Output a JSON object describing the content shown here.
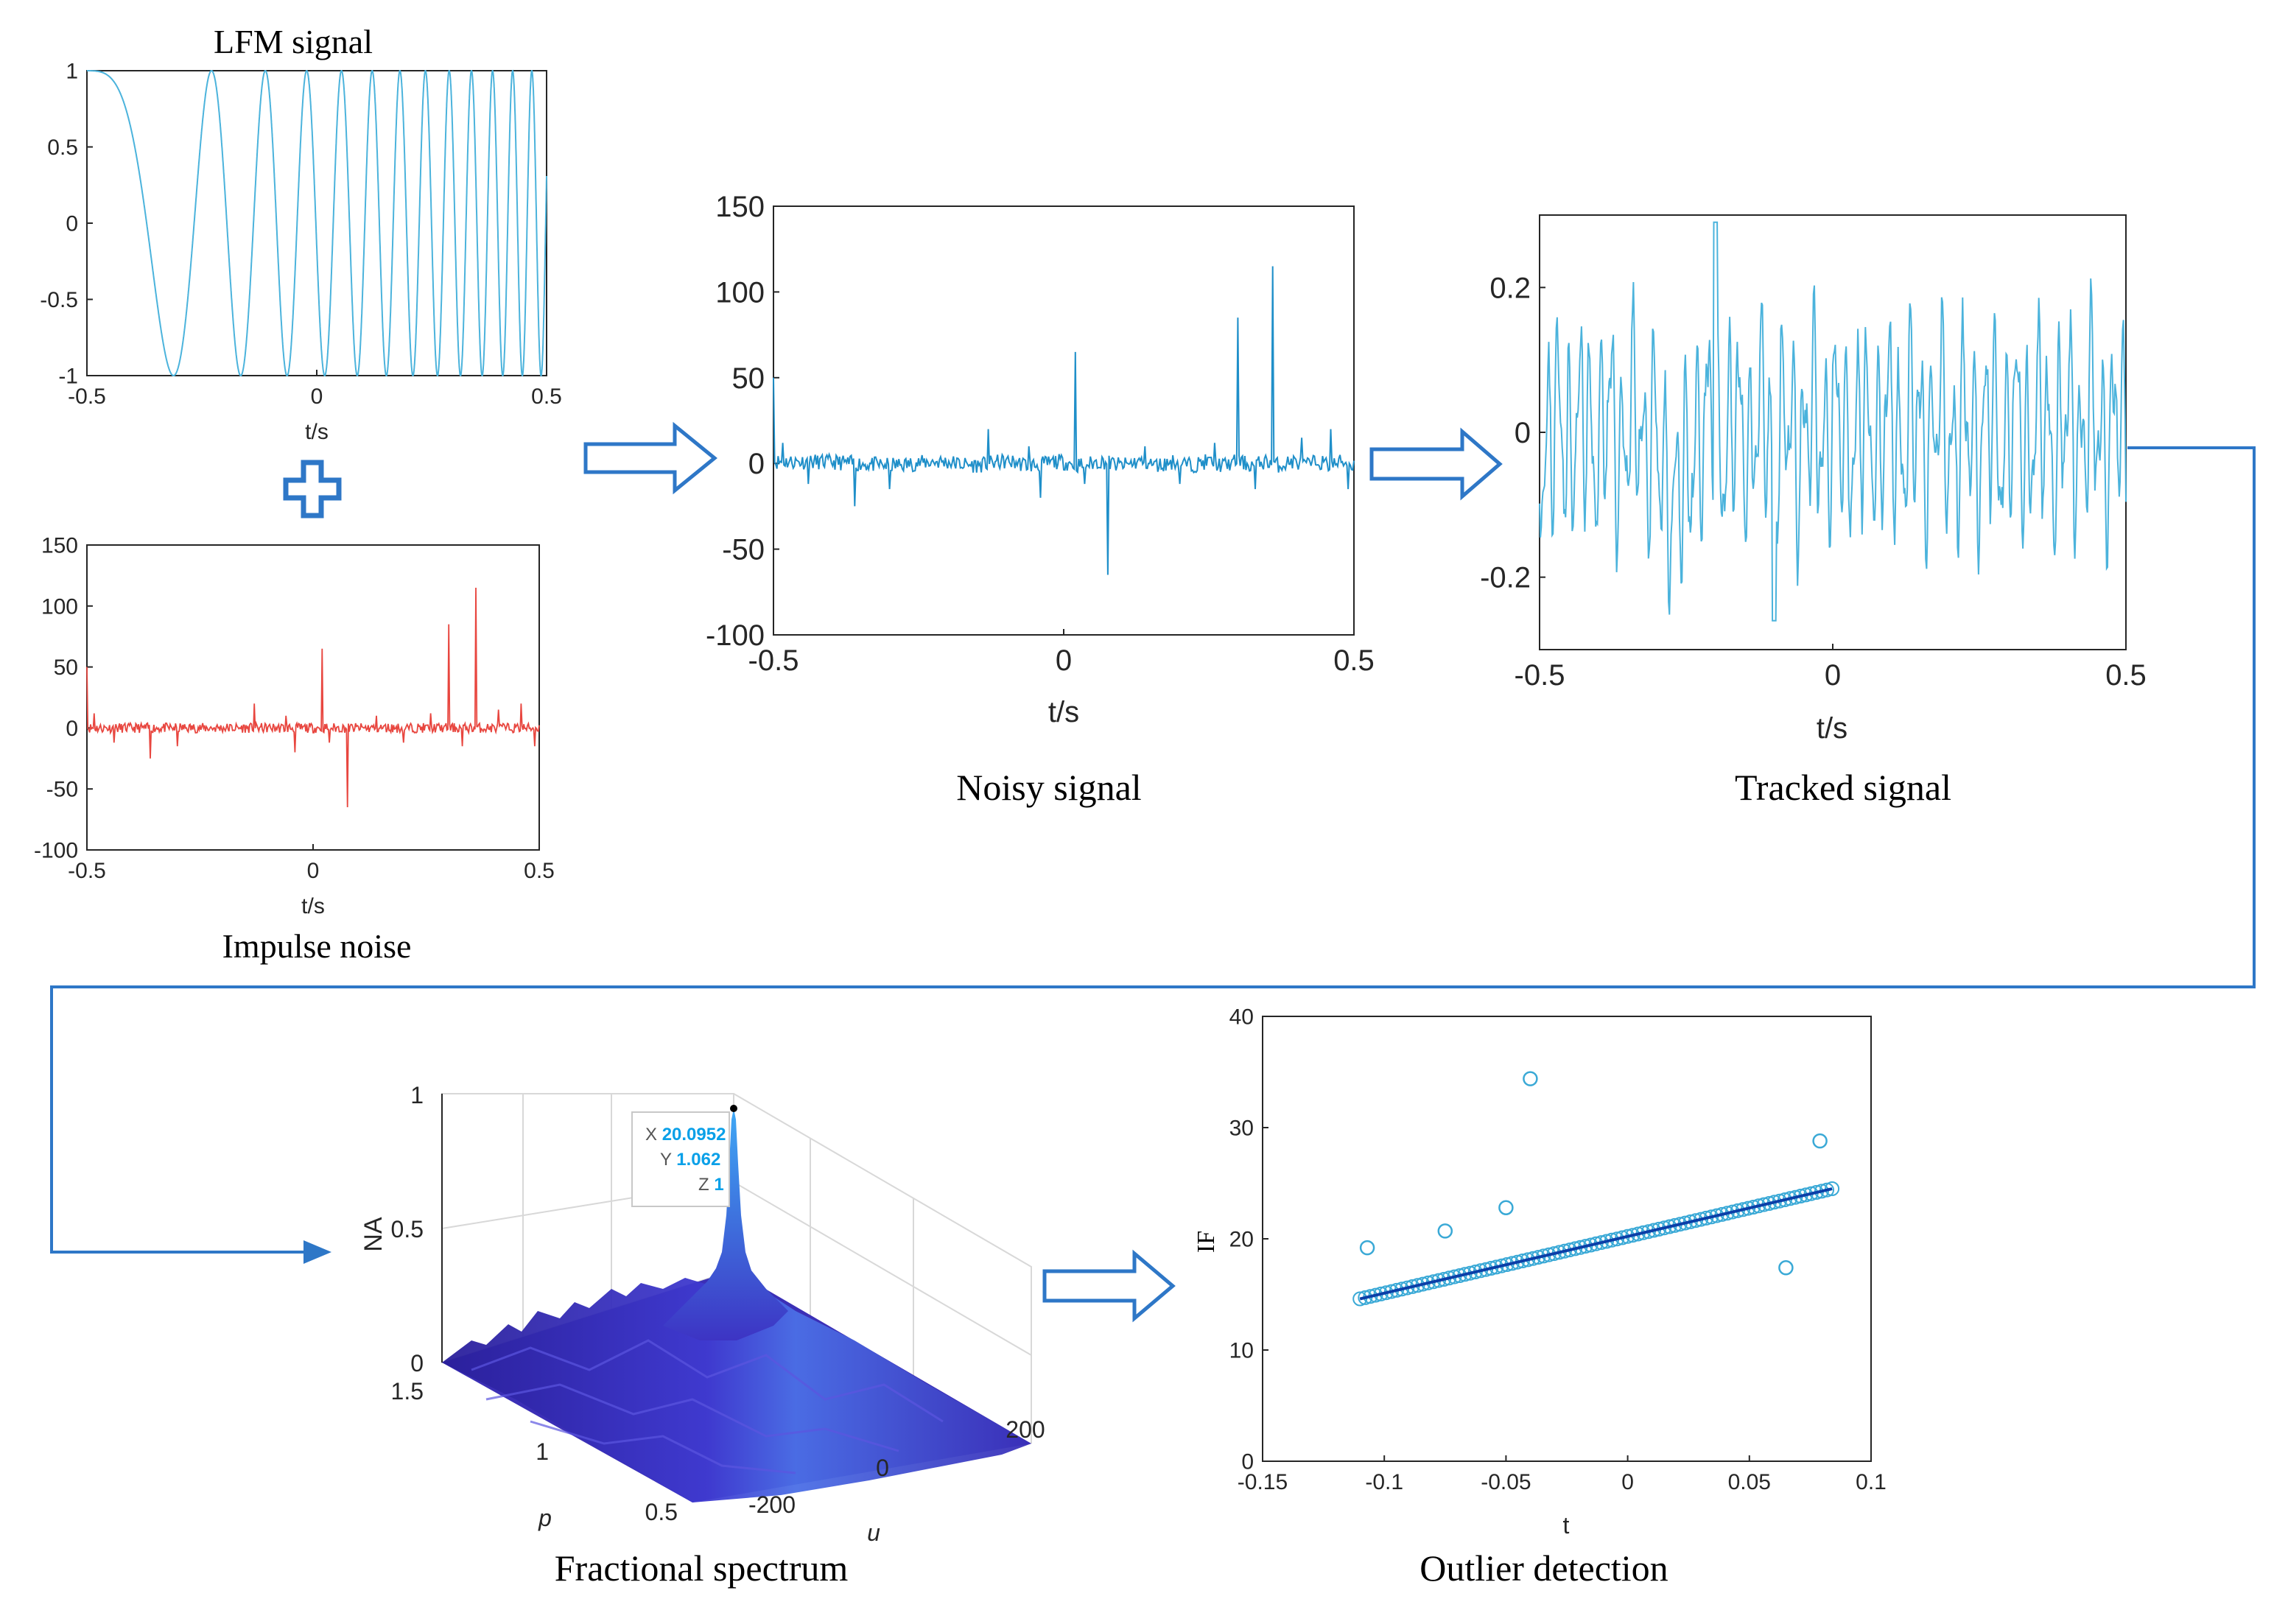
{
  "colors": {
    "signal": "#4bb3dc",
    "noisy": "#1f8fc9",
    "impulse": "#e8463f",
    "flow": "#2e77c7",
    "surface_dark": "#3c2bb0",
    "surface_light": "#4a8cf0",
    "outlier_marker": "#3aa9d6",
    "fit_line": "#0b3fa8"
  },
  "captions": {
    "lfm": "LFM signal",
    "impulse": "Impulse noise",
    "noisy": "Noisy signal",
    "tracked": "Tracked signal",
    "fractional": "Fractional spectrum",
    "outlier": "Outlier detection"
  },
  "plus_icon": "plus-icon",
  "chart_data": [
    {
      "id": "lfm",
      "type": "line",
      "title": "LFM signal",
      "xlabel": "t/s",
      "ylabel": "",
      "xlim": [
        -0.5,
        0.5
      ],
      "ylim": [
        -1,
        1
      ],
      "xticks": [
        "-0.5",
        "0",
        "0.5"
      ],
      "yticks": [
        "-1",
        "-0.5",
        "0",
        "0.5",
        "1"
      ],
      "signal": "cos(2*pi*(1600*t^2 + 1000*t))",
      "grid": false
    },
    {
      "id": "impulse",
      "type": "line",
      "title": "Impulse noise",
      "xlabel": "t/s",
      "ylabel": "",
      "xlim": [
        -0.5,
        0.5
      ],
      "ylim": [
        -100,
        150
      ],
      "xticks": [
        "-0.5",
        "0",
        "0.5"
      ],
      "yticks": [
        "-100",
        "-50",
        "0",
        "50",
        "100",
        "150"
      ],
      "spikes": [
        {
          "x": -0.5,
          "y": 50
        },
        {
          "x": -0.485,
          "y": 12
        },
        {
          "x": -0.44,
          "y": -12
        },
        {
          "x": -0.36,
          "y": -25
        },
        {
          "x": -0.3,
          "y": -15
        },
        {
          "x": -0.13,
          "y": 20
        },
        {
          "x": -0.06,
          "y": 10
        },
        {
          "x": -0.04,
          "y": -20
        },
        {
          "x": 0.02,
          "y": 65
        },
        {
          "x": 0.035,
          "y": -12
        },
        {
          "x": 0.075,
          "y": -65
        },
        {
          "x": 0.14,
          "y": 10
        },
        {
          "x": 0.2,
          "y": -12
        },
        {
          "x": 0.26,
          "y": 12
        },
        {
          "x": 0.3,
          "y": 85
        },
        {
          "x": 0.33,
          "y": -15
        },
        {
          "x": 0.36,
          "y": 115
        },
        {
          "x": 0.41,
          "y": 15
        },
        {
          "x": 0.46,
          "y": 20
        },
        {
          "x": 0.49,
          "y": -15
        }
      ],
      "grid": false
    },
    {
      "id": "noisy",
      "type": "line",
      "title": "Noisy signal",
      "xlabel": "t/s",
      "ylabel": "",
      "xlim": [
        -0.5,
        0.5
      ],
      "ylim": [
        -100,
        150
      ],
      "xticks": [
        "-0.5",
        "0",
        "0.5"
      ],
      "yticks": [
        "-100",
        "-50",
        "0",
        "50",
        "100",
        "150"
      ],
      "spikes": [
        {
          "x": -0.5,
          "y": 50
        },
        {
          "x": -0.485,
          "y": 12
        },
        {
          "x": -0.44,
          "y": -12
        },
        {
          "x": -0.36,
          "y": -25
        },
        {
          "x": -0.3,
          "y": -15
        },
        {
          "x": -0.13,
          "y": 20
        },
        {
          "x": -0.06,
          "y": 10
        },
        {
          "x": -0.04,
          "y": -20
        },
        {
          "x": 0.02,
          "y": 65
        },
        {
          "x": 0.035,
          "y": -12
        },
        {
          "x": 0.075,
          "y": -65
        },
        {
          "x": 0.14,
          "y": 10
        },
        {
          "x": 0.2,
          "y": -12
        },
        {
          "x": 0.26,
          "y": 12
        },
        {
          "x": 0.3,
          "y": 85
        },
        {
          "x": 0.33,
          "y": -15
        },
        {
          "x": 0.36,
          "y": 115
        },
        {
          "x": 0.41,
          "y": 15
        },
        {
          "x": 0.46,
          "y": 20
        },
        {
          "x": 0.49,
          "y": -15
        }
      ],
      "grid": false
    },
    {
      "id": "tracked",
      "type": "line",
      "title": "Tracked signal",
      "xlabel": "t/s",
      "ylabel": "",
      "xlim": [
        -0.5,
        0.5
      ],
      "ylim": [
        -0.3,
        0.3
      ],
      "xticks": [
        "-0.5",
        "0",
        "0.5"
      ],
      "yticks": [
        "-0.2",
        "0",
        "0.2"
      ],
      "value_range": [
        -0.26,
        0.29
      ],
      "grid": false
    },
    {
      "id": "fractional",
      "type": "surface",
      "title": "Fractional spectrum",
      "xlabel": "u",
      "ylabel": "p",
      "zlabel": "NA",
      "xticks": [
        "-200",
        "0",
        "200"
      ],
      "yticks": [
        "0.5",
        "1",
        "1.5"
      ],
      "zticks": [
        "0",
        "0.5",
        "1"
      ],
      "peak": {
        "X": "20.0952",
        "Y": "1.062",
        "Z": "1"
      },
      "datatip_labels": {
        "X": "X",
        "Y": "Y",
        "Z": "Z"
      },
      "grid": true
    },
    {
      "id": "outlier",
      "type": "scatter",
      "title": "Outlier detection",
      "xlabel": "t",
      "ylabel": "IF",
      "xlim": [
        -0.15,
        0.1
      ],
      "ylim": [
        0,
        40
      ],
      "xticks": [
        "-0.15",
        "-0.1",
        "-0.05",
        "0",
        "0.05",
        "0.1"
      ],
      "yticks": [
        "0",
        "10",
        "20",
        "30",
        "40"
      ],
      "line": {
        "x_start": -0.11,
        "y_start": 14.6,
        "x_end": 0.084,
        "y_end": 24.5
      },
      "outliers": [
        {
          "x": -0.107,
          "y": 19.2
        },
        {
          "x": -0.075,
          "y": 20.7
        },
        {
          "x": -0.05,
          "y": 22.8
        },
        {
          "x": -0.04,
          "y": 34.4
        },
        {
          "x": 0.065,
          "y": 17.4
        },
        {
          "x": 0.079,
          "y": 28.8
        }
      ],
      "grid": false
    }
  ]
}
